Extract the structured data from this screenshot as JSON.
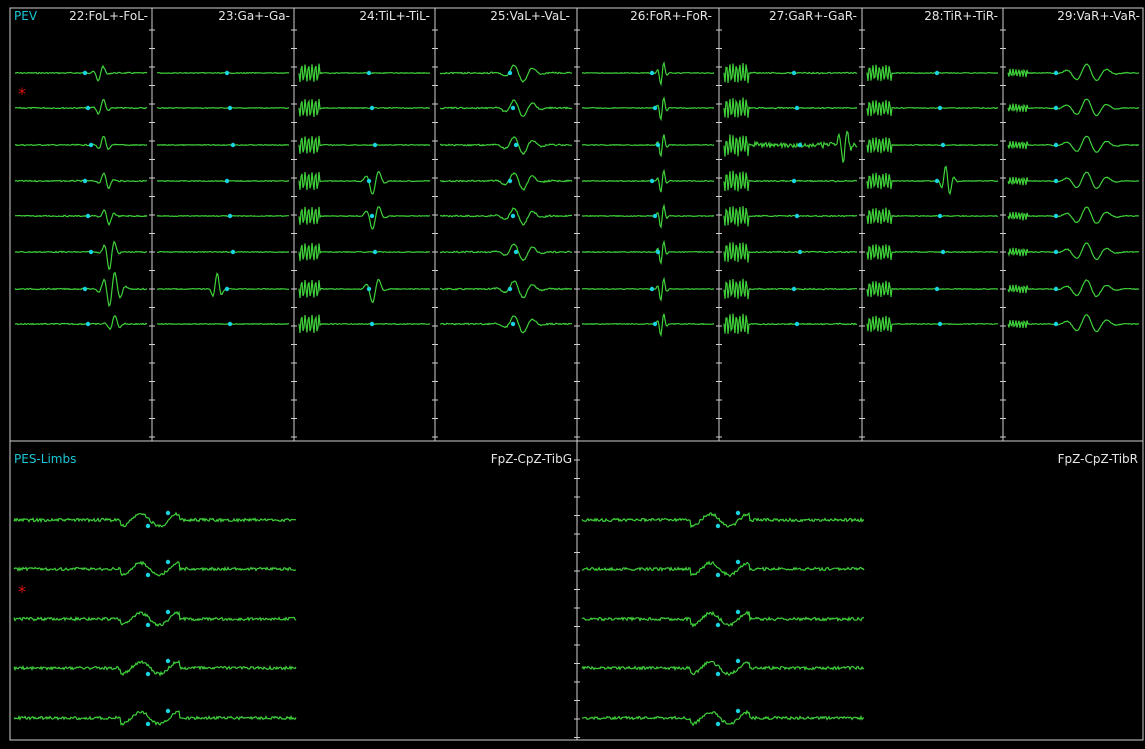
{
  "top": {
    "mode_label": "PEV",
    "channels": [
      "22:FoL+-FoL-",
      "23:Ga+-Ga-",
      "24:TiL+-TiL-",
      "25:VaL+-VaL-",
      "26:FoR+-FoR-",
      "27:GaR+-GaR-",
      "28:TiR+-TiR-",
      "29:VaR+-VaR-"
    ],
    "marker": "*"
  },
  "bottom": {
    "mode_label": "PES-Limbs",
    "left_montage": "FpZ-CpZ-TibG",
    "right_montage": "FpZ-CpZ-TibR",
    "marker": "*"
  },
  "colors": {
    "trace": "#3fd13a",
    "cursor_dot": "#19d3e0",
    "grid": "#cfcfcf",
    "label_cyan": "#19c7d6",
    "label_text": "#e6e6e6",
    "marker": "#dd1111"
  }
}
